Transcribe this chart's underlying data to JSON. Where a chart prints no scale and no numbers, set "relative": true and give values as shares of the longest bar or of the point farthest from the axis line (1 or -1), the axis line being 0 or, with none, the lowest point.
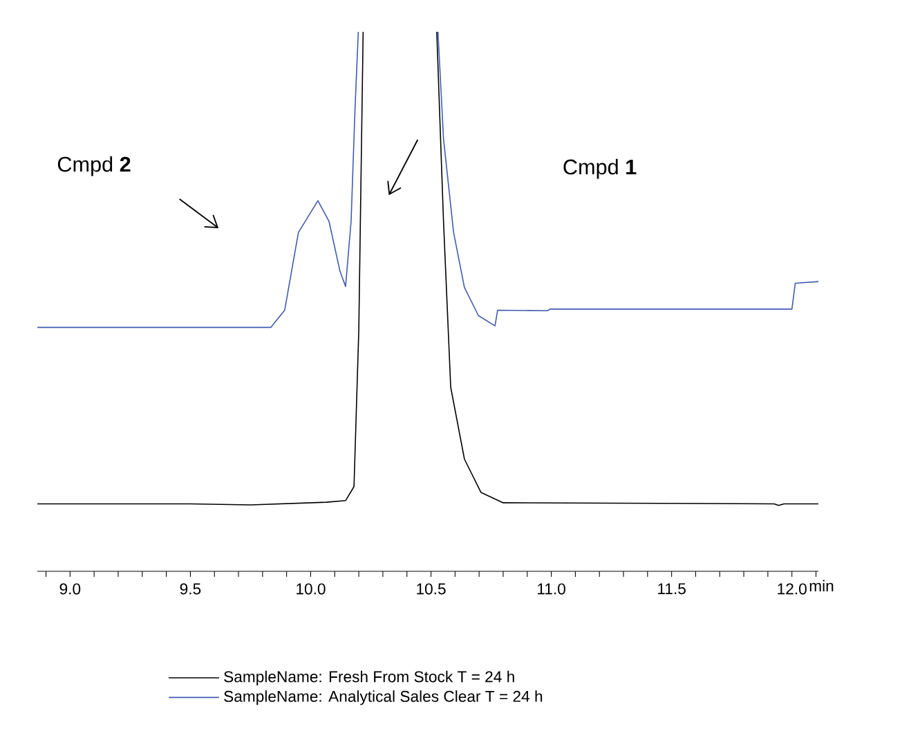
{
  "chart_data": {
    "type": "line",
    "relative": true,
    "xlabel": "min",
    "xlim": [
      8.864,
      12.11
    ],
    "xticks": [
      {
        "value": 8.9,
        "label": null
      },
      {
        "value": 9.0,
        "label": "9.0"
      },
      {
        "value": 9.1,
        "label": null
      },
      {
        "value": 9.2,
        "label": null
      },
      {
        "value": 9.3,
        "label": null
      },
      {
        "value": 9.4,
        "label": null
      },
      {
        "value": 9.5,
        "label": "9.5"
      },
      {
        "value": 9.6,
        "label": null
      },
      {
        "value": 9.7,
        "label": null
      },
      {
        "value": 9.8,
        "label": null
      },
      {
        "value": 9.9,
        "label": null
      },
      {
        "value": 10.0,
        "label": "10.0"
      },
      {
        "value": 10.1,
        "label": null
      },
      {
        "value": 10.2,
        "label": null
      },
      {
        "value": 10.3,
        "label": null
      },
      {
        "value": 10.4,
        "label": null
      },
      {
        "value": 10.5,
        "label": "10.5"
      },
      {
        "value": 10.6,
        "label": null
      },
      {
        "value": 10.7,
        "label": null
      },
      {
        "value": 10.8,
        "label": null
      },
      {
        "value": 10.9,
        "label": null
      },
      {
        "value": 11.0,
        "label": "11.0"
      },
      {
        "value": 11.1,
        "label": null
      },
      {
        "value": 11.2,
        "label": null
      },
      {
        "value": 11.3,
        "label": null
      },
      {
        "value": 11.4,
        "label": null
      },
      {
        "value": 11.5,
        "label": "11.5"
      },
      {
        "value": 11.6,
        "label": null
      },
      {
        "value": 11.7,
        "label": null
      },
      {
        "value": 11.8,
        "label": null
      },
      {
        "value": 11.9,
        "label": null
      },
      {
        "value": 12.0,
        "label": "12.0"
      },
      {
        "value": 12.1,
        "label": null
      }
    ],
    "legend": "bottom",
    "marker": "none",
    "line_style": "solid",
    "annotations": [
      "Cmpd **2**",
      "Cmpd **1**"
    ],
    "series": [
      {
        "name": "SampleName: Fresh From Stock T = 24 h",
        "color": "#000000",
        "x": [
          8.864,
          9.5,
          9.75,
          10.065,
          10.145,
          10.18,
          10.2,
          10.218,
          10.3,
          10.524,
          10.552,
          10.582,
          10.639,
          10.708,
          10.8,
          11.926,
          11.945,
          11.967,
          12.11
        ],
        "values": [
          0.125,
          0.125,
          0.123,
          0.128,
          0.131,
          0.157,
          0.447,
          1,
          null,
          1,
          0.649,
          0.341,
          0.208,
          0.146,
          0.127,
          0.125,
          0.122,
          0.125,
          0.125
        ]
      },
      {
        "name": "SampleName: Analytical Sales Clear T = 24 h",
        "color": "#3f5bb0",
        "x": [
          8.864,
          9.834,
          9.892,
          9.949,
          10.03,
          10.076,
          10.122,
          10.145,
          10.168,
          10.184,
          10.198,
          10.3,
          10.529,
          10.552,
          10.594,
          10.639,
          10.697,
          10.766,
          10.777,
          10.984,
          10.995,
          12.0,
          12.014,
          12.11
        ],
        "values": [
          0.452,
          0.452,
          0.484,
          0.628,
          0.687,
          0.649,
          0.556,
          0.528,
          0.649,
          0.854,
          1,
          null,
          1,
          0.802,
          0.628,
          0.526,
          0.474,
          0.455,
          0.484,
          0.483,
          0.486,
          0.486,
          0.534,
          0.537
        ]
      }
    ]
  }
}
